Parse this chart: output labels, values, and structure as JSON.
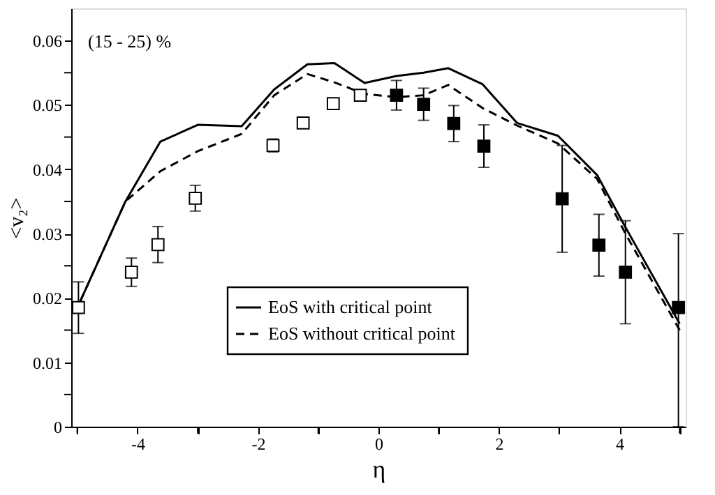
{
  "chart_data": {
    "type": "line",
    "xlabel": "η",
    "ylabel": "<v₂>",
    "annotations": [
      "(15 - 25) %"
    ],
    "xlim": [
      -5.1,
      5.1
    ],
    "ylim": [
      0,
      0.065
    ],
    "xticks": [
      {
        "value": -5,
        "label": null
      },
      -4,
      {
        "value": -3,
        "label": null
      },
      -2,
      {
        "value": -1,
        "label": null
      },
      0,
      {
        "value": 1,
        "label": null
      },
      2,
      {
        "value": 3,
        "label": null
      },
      4,
      {
        "value": 5,
        "label": null
      }
    ],
    "yticks": [
      0,
      {
        "value": 0.005,
        "label": null
      },
      0.01,
      {
        "value": 0.015,
        "label": null
      },
      0.02,
      {
        "value": 0.025,
        "label": null
      },
      0.03,
      {
        "value": 0.035,
        "label": null
      },
      0.04,
      {
        "value": 0.045,
        "label": null
      },
      0.05,
      {
        "value": 0.055,
        "label": null
      },
      0.06
    ],
    "grid": false,
    "legend": "bottom",
    "line_style": "solid",
    "series": [
      {
        "name": "EoS with critical point",
        "color": "#000000",
        "x": [
          -4.95,
          -4.2,
          -3.62,
          -3.0,
          -2.27,
          -1.73,
          -1.18,
          -0.73,
          -0.23,
          0.3,
          0.75,
          1.16,
          1.73,
          2.3,
          2.98,
          3.63,
          4.1,
          5.0
        ],
        "values": [
          0.0195,
          0.035,
          0.0443,
          0.0469,
          0.0467,
          0.0524,
          0.0563,
          0.0565,
          0.0534,
          0.0545,
          0.055,
          0.0557,
          0.0532,
          0.0472,
          0.0452,
          0.0391,
          0.031,
          0.016
        ]
      },
      {
        "name": "EoS without critical point",
        "line_style": "dashed",
        "color": "#000000",
        "x": [
          -4.95,
          -4.2,
          -3.62,
          -3.0,
          -2.27,
          -1.73,
          -1.18,
          -0.73,
          -0.23,
          0.3,
          0.75,
          1.16,
          1.73,
          2.3,
          2.98,
          3.63,
          4.1,
          5.0
        ],
        "values": [
          0.0195,
          0.035,
          0.0397,
          0.0428,
          0.0455,
          0.0515,
          0.0548,
          0.0535,
          0.0517,
          0.0512,
          0.0515,
          0.0531,
          0.0495,
          0.0468,
          0.044,
          0.0385,
          0.03,
          0.015
        ]
      },
      {
        "type": "scatter",
        "marker": "square",
        "color": "#ffffff",
        "x": [
          -4.98,
          -4.1,
          -3.66,
          -3.04,
          -1.75,
          -1.25,
          -0.75,
          -0.3
        ],
        "values": [
          0.0185,
          0.024,
          0.0283,
          0.0355,
          0.0437,
          0.0472,
          0.0502,
          0.0515
        ],
        "errors": [
          0.004,
          0.0022,
          0.0028,
          0.002,
          0.001,
          0.0005,
          0.0005,
          0.0005
        ]
      },
      {
        "type": "scatter",
        "marker": "square",
        "color": "#000000",
        "x": [
          0.3,
          0.75,
          1.25,
          1.75,
          3.05,
          3.66,
          4.1,
          4.98
        ],
        "values": [
          0.0515,
          0.0501,
          0.0471,
          0.0436,
          0.0354,
          0.0282,
          0.024,
          0.0185
        ],
        "errors": [
          0.0023,
          0.0025,
          0.0028,
          0.0033,
          0.0083,
          0.0048,
          0.008,
          [
            0,
            0.03
          ]
        ]
      }
    ]
  }
}
